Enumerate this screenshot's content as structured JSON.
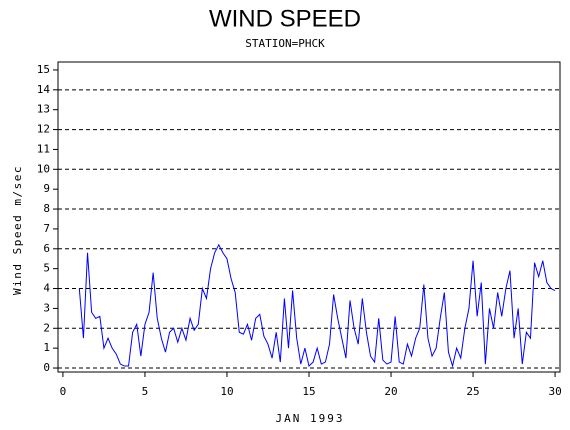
{
  "chart_data": {
    "type": "line",
    "title": "WIND SPEED",
    "subtitle": "STATION=PHCK",
    "x_label": "JAN 1993",
    "y_label": "Wind Speed m/sec",
    "x": [
      1,
      1.25,
      1.5,
      1.75,
      2,
      2.25,
      2.5,
      2.75,
      3,
      3.25,
      3.5,
      3.75,
      4,
      4.25,
      4.5,
      4.75,
      5,
      5.25,
      5.5,
      5.75,
      6,
      6.25,
      6.5,
      6.75,
      7,
      7.25,
      7.5,
      7.75,
      8,
      8.25,
      8.5,
      8.75,
      9,
      9.25,
      9.5,
      9.75,
      10,
      10.25,
      10.5,
      10.75,
      11,
      11.25,
      11.5,
      11.75,
      12,
      12.25,
      12.5,
      12.75,
      13,
      13.25,
      13.5,
      13.75,
      14,
      14.25,
      14.5,
      14.75,
      15,
      15.25,
      15.5,
      15.75,
      16,
      16.25,
      16.5,
      16.75,
      17,
      17.25,
      17.5,
      17.75,
      18,
      18.25,
      18.5,
      18.75,
      19,
      19.25,
      19.5,
      19.75,
      20,
      20.25,
      20.5,
      20.75,
      21,
      21.25,
      21.5,
      21.75,
      22,
      22.25,
      22.5,
      22.75,
      23,
      23.25,
      23.5,
      23.75,
      24,
      24.25,
      24.5,
      24.75,
      25,
      25.25,
      25.5,
      25.75,
      26,
      26.25,
      26.5,
      26.75,
      27,
      27.25,
      27.5,
      27.75,
      28,
      28.25,
      28.5,
      28.75,
      29,
      29.25,
      29.5,
      29.75,
      30
    ],
    "series": [
      {
        "name": "Wind Speed",
        "color": "#0000ff",
        "values": [
          4.0,
          1.5,
          5.8,
          2.8,
          2.5,
          2.6,
          1.0,
          1.5,
          1.0,
          0.7,
          0.2,
          0.1,
          0.1,
          1.8,
          2.2,
          0.6,
          2.2,
          2.8,
          4.8,
          2.5,
          1.5,
          0.8,
          1.8,
          2.0,
          1.3,
          2.0,
          1.4,
          2.5,
          1.9,
          2.2,
          4.0,
          3.5,
          5.0,
          5.8,
          6.2,
          5.8,
          5.5,
          4.5,
          3.8,
          1.8,
          1.7,
          2.2,
          1.4,
          2.5,
          2.7,
          1.6,
          1.2,
          0.5,
          1.8,
          0.3,
          3.5,
          1.0,
          3.9,
          1.5,
          0.2,
          1.0,
          0.1,
          0.3,
          1.0,
          0.2,
          0.3,
          1.2,
          3.7,
          2.5,
          1.5,
          0.5,
          3.4,
          2.0,
          1.2,
          3.5,
          1.8,
          0.6,
          0.3,
          2.5,
          0.4,
          0.2,
          0.3,
          2.6,
          0.3,
          0.2,
          1.2,
          0.6,
          1.5,
          2.0,
          4.2,
          1.5,
          0.6,
          1.0,
          2.5,
          3.8,
          0.8,
          0.1,
          1.0,
          0.5,
          2.0,
          3.0,
          5.4,
          2.6,
          4.3,
          0.2,
          3.0,
          2.0,
          3.8,
          2.6,
          4.0,
          4.9,
          1.5,
          3.0,
          0.2,
          1.8,
          1.5,
          5.3,
          4.6,
          5.4,
          4.3,
          4.0,
          3.9
        ]
      }
    ],
    "xlim": [
      -0.3,
      30.3
    ],
    "xticks": [
      0,
      5,
      10,
      15,
      20,
      25,
      30
    ],
    "ylim": [
      -0.2,
      15.4
    ],
    "yticks": [
      0,
      1,
      2,
      3,
      4,
      5,
      6,
      7,
      8,
      9,
      10,
      11,
      12,
      13,
      14,
      15
    ],
    "gridlines": [
      0,
      2,
      4,
      6,
      8,
      10,
      12,
      14
    ]
  }
}
